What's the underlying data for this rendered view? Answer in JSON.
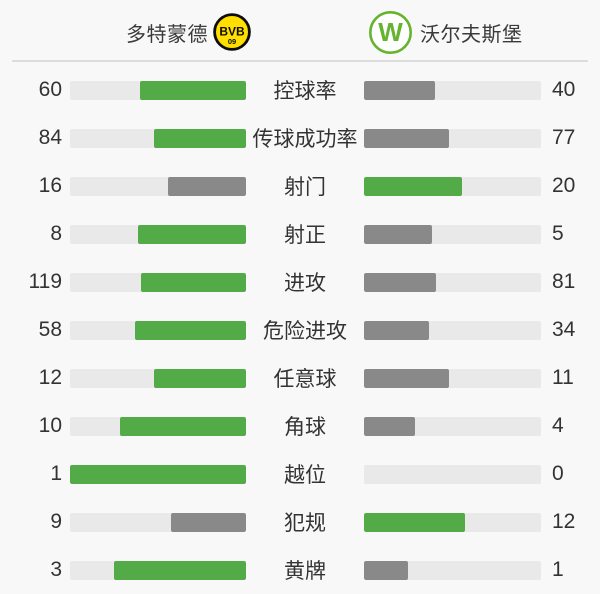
{
  "header": {
    "home": {
      "name": "多特蒙德",
      "logo": {
        "icon": "bvb-dortmund-crest",
        "text_main": "BVB",
        "text_sub": "09"
      }
    },
    "away": {
      "name": "沃尔夫斯堡",
      "logo": {
        "icon": "wolfsburg-crest",
        "letter": "W"
      }
    }
  },
  "colors": {
    "win_fill": "#53ab47",
    "lose_fill": "#898989",
    "bar_track": "#e9e9e9",
    "bvb_yellow": "#ffde00",
    "bvb_black": "#0d0d0d",
    "wolfsburg_green": "#65b32e",
    "text": "#333333"
  },
  "chart_data": {
    "type": "bar",
    "note": "paired horizontal stat bars; fill width = value / (home+away), higher value colored green, lower gray",
    "series": [
      {
        "name": "多特蒙德",
        "side": "home"
      },
      {
        "name": "沃尔夫斯堡",
        "side": "away"
      }
    ],
    "stats": [
      {
        "label": "控球率",
        "home": 60,
        "away": 40
      },
      {
        "label": "传球成功率",
        "home": 84,
        "away": 77
      },
      {
        "label": "射门",
        "home": 16,
        "away": 20
      },
      {
        "label": "射正",
        "home": 8,
        "away": 5
      },
      {
        "label": "进攻",
        "home": 119,
        "away": 81
      },
      {
        "label": "危险进攻",
        "home": 58,
        "away": 34
      },
      {
        "label": "任意球",
        "home": 12,
        "away": 11
      },
      {
        "label": "角球",
        "home": 10,
        "away": 4
      },
      {
        "label": "越位",
        "home": 1,
        "away": 0
      },
      {
        "label": "犯规",
        "home": 9,
        "away": 12
      },
      {
        "label": "黄牌",
        "home": 3,
        "away": 1
      }
    ]
  }
}
